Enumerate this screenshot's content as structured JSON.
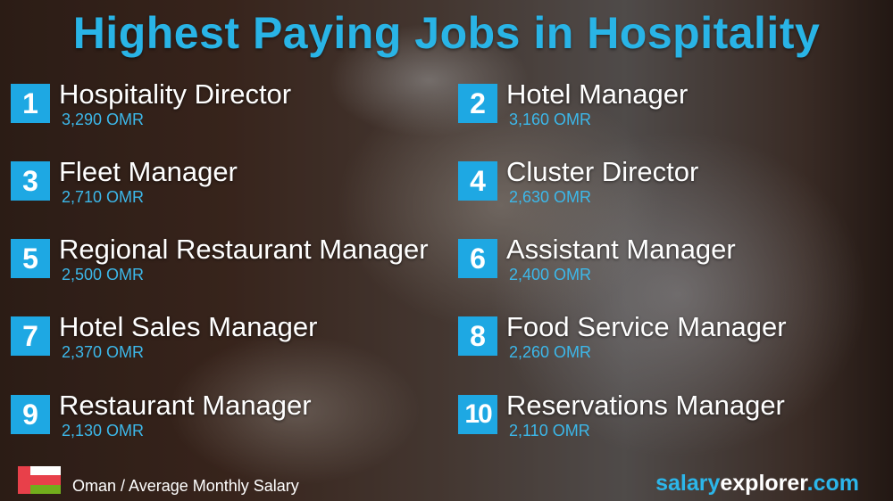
{
  "title": "Highest Paying Jobs in Hospitality",
  "jobs": [
    {
      "rank": "1",
      "name": "Hospitality Director",
      "salary": "3,290 OMR"
    },
    {
      "rank": "2",
      "name": "Hotel Manager",
      "salary": "3,160 OMR"
    },
    {
      "rank": "3",
      "name": "Fleet Manager",
      "salary": "2,710 OMR"
    },
    {
      "rank": "4",
      "name": "Cluster Director",
      "salary": "2,630 OMR"
    },
    {
      "rank": "5",
      "name": "Regional Restaurant Manager",
      "salary": "2,500 OMR"
    },
    {
      "rank": "6",
      "name": "Assistant Manager",
      "salary": "2,400 OMR"
    },
    {
      "rank": "7",
      "name": "Hotel Sales Manager",
      "salary": "2,370 OMR"
    },
    {
      "rank": "8",
      "name": "Food Service Manager",
      "salary": "2,260 OMR"
    },
    {
      "rank": "9",
      "name": "Restaurant Manager",
      "salary": "2,130 OMR"
    },
    {
      "rank": "10",
      "name": "Reservations Manager",
      "salary": "2,110 OMR"
    }
  ],
  "footer": {
    "flag_icon": "oman-flag",
    "caption": "Oman / Average Monthly Salary",
    "brand_part1": "salary",
    "brand_part2": "explorer",
    "brand_part3": ".com"
  },
  "colors": {
    "accent": "#1ea8e3",
    "title": "#29b4e6",
    "salary": "#3cb8ea"
  }
}
